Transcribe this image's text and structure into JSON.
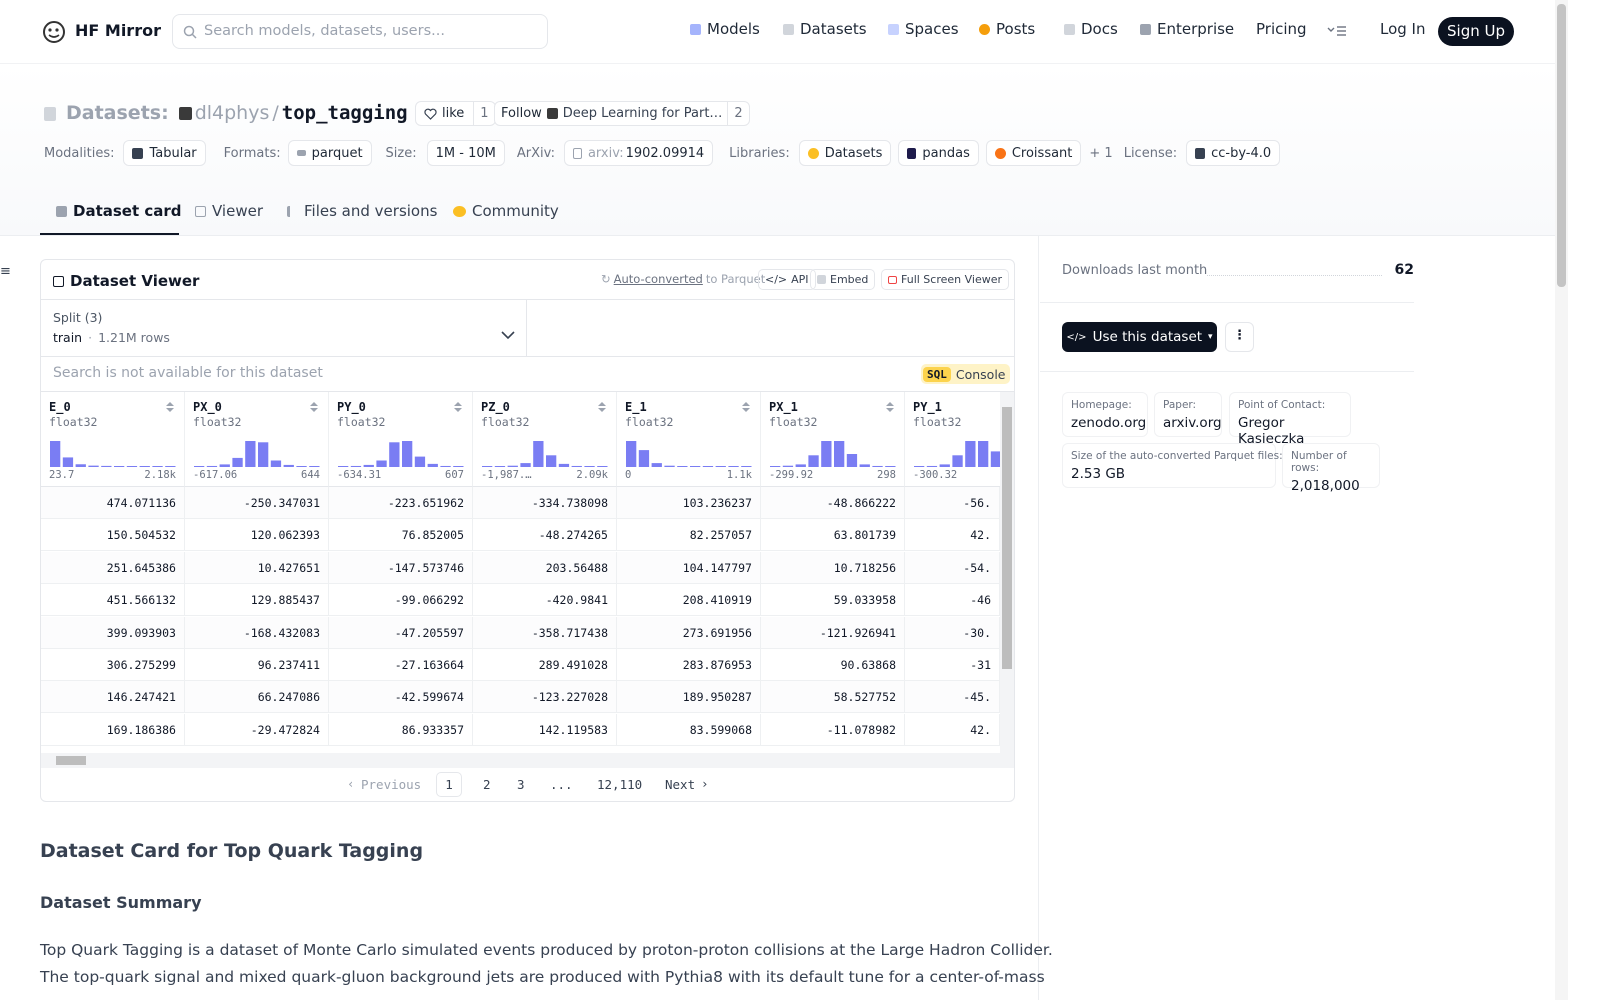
{
  "header": {
    "logo": "HF Mirror",
    "search_placeholder": "Search models, datasets, users...",
    "nav": [
      "Models",
      "Datasets",
      "Spaces",
      "Posts",
      "Docs",
      "Enterprise",
      "Pricing"
    ],
    "login": "Log In",
    "signup": "Sign Up"
  },
  "repo": {
    "kind": "Datasets:",
    "owner": "dl4phys",
    "separator": "/",
    "name": "top_tagging",
    "like": "like",
    "likes": 1,
    "follow": "Follow",
    "org": "Deep Learning for Part…",
    "followers": 2
  },
  "tags": {
    "modalities_label": "Modalities:",
    "modalities": [
      "Tabular"
    ],
    "formats_label": "Formats:",
    "formats": [
      "parquet"
    ],
    "size_label": "Size:",
    "size": "1M - 10M",
    "arxiv_label": "ArXiv:",
    "arxiv_prefix": "arxiv:",
    "arxiv_id": "1902.09914",
    "libraries_label": "Libraries:",
    "libraries": [
      "Datasets",
      "pandas",
      "Croissant"
    ],
    "libraries_more": "+ 1",
    "license_label": "License:",
    "license": "cc-by-4.0"
  },
  "tabs": [
    "Dataset card",
    "Viewer",
    "Files and versions",
    "Community"
  ],
  "viewer": {
    "title": "Dataset Viewer",
    "auto_converted": "Auto-converted",
    "to_parquet": "to Parquet",
    "api": "API",
    "embed": "Embed",
    "full_screen": "Full Screen Viewer",
    "split_label": "Split (3)",
    "split": "train",
    "split_rows": "1.21M rows",
    "search": "Search is not available for this dataset",
    "sql": "SQL",
    "console": "Console",
    "columns": [
      {
        "name": "E_0",
        "type": "float32",
        "min": "23.7",
        "max": "2.18k",
        "hist": [
          95,
          35,
          10,
          5,
          4,
          3,
          3,
          3,
          2,
          2
        ]
      },
      {
        "name": "PX_0",
        "type": "float32",
        "min": "-617.06",
        "max": "644",
        "hist": [
          3,
          4,
          10,
          35,
          100,
          95,
          25,
          8,
          3,
          2
        ]
      },
      {
        "name": "PY_0",
        "type": "float32",
        "min": "-634.31",
        "max": "607",
        "hist": [
          3,
          4,
          8,
          25,
          95,
          100,
          40,
          12,
          4,
          3
        ]
      },
      {
        "name": "PZ_0",
        "type": "float32",
        "min": "-1,987.…",
        "max": "2.09k",
        "hist": [
          2,
          3,
          5,
          15,
          100,
          45,
          12,
          4,
          2,
          2
        ]
      },
      {
        "name": "E_1",
        "type": "float32",
        "min": "0",
        "max": "1.1k",
        "hist": [
          100,
          65,
          15,
          5,
          3,
          2,
          2,
          2,
          2,
          2
        ]
      },
      {
        "name": "PX_1",
        "type": "float32",
        "min": "-299.92",
        "max": "298",
        "hist": [
          3,
          5,
          10,
          45,
          100,
          100,
          50,
          10,
          4,
          3
        ]
      },
      {
        "name": "PY_1",
        "type": "float32",
        "min": "-300.32",
        "hist": [
          3,
          4,
          10,
          45,
          100,
          100,
          60,
          12,
          4,
          3
        ]
      }
    ],
    "rows": [
      [
        "474.071136",
        "-250.347031",
        "-223.651962",
        "-334.738098",
        "103.236237",
        "-48.866222",
        "-56."
      ],
      [
        "150.504532",
        "120.062393",
        "76.852005",
        "-48.274265",
        "82.257057",
        "63.801739",
        "42."
      ],
      [
        "251.645386",
        "10.427651",
        "-147.573746",
        "203.56488",
        "104.147797",
        "10.718256",
        "-54."
      ],
      [
        "451.566132",
        "129.885437",
        "-99.066292",
        "-420.9841",
        "208.410919",
        "59.033958",
        "-46"
      ],
      [
        "399.093903",
        "-168.432083",
        "-47.205597",
        "-358.717438",
        "273.691956",
        "-121.926941",
        "-30."
      ],
      [
        "306.275299",
        "96.237411",
        "-27.163664",
        "289.491028",
        "283.876953",
        "90.63868",
        "-31"
      ],
      [
        "146.247421",
        "66.247086",
        "-42.599674",
        "-123.227028",
        "189.950287",
        "58.527752",
        "-45."
      ],
      [
        "169.186386",
        "-29.472824",
        "86.933357",
        "142.119583",
        "83.599068",
        "-11.078982",
        "42."
      ]
    ],
    "pagination": {
      "previous": "Previous",
      "pages": [
        "1",
        "2",
        "3",
        "...",
        "12,110"
      ],
      "next": "Next"
    }
  },
  "card": {
    "title": "Dataset Card for Top Quark Tagging",
    "summary_heading": "Dataset Summary",
    "paragraphs": [
      "Top Quark Tagging is a dataset of Monte Carlo simulated events produced by proton-proton collisions at the Large Hadron Collider.",
      "The top-quark signal and mixed quark-gluon background jets are produced with Pythia8 with its default tune for a center-of-mass"
    ]
  },
  "sidebar": {
    "downloads_label": "Downloads last month",
    "downloads": 62,
    "use_dataset": "Use this dataset",
    "info": [
      {
        "label": "Homepage:",
        "value": "zenodo.org"
      },
      {
        "label": "Paper:",
        "value": "arxiv.org"
      },
      {
        "label": "Point of Contact:",
        "value": "Gregor Kasieczka"
      },
      {
        "label": "Size of the auto-converted Parquet files:",
        "value": "2.53 GB"
      },
      {
        "label": "Number of rows:",
        "value": "2,018,000"
      }
    ]
  }
}
